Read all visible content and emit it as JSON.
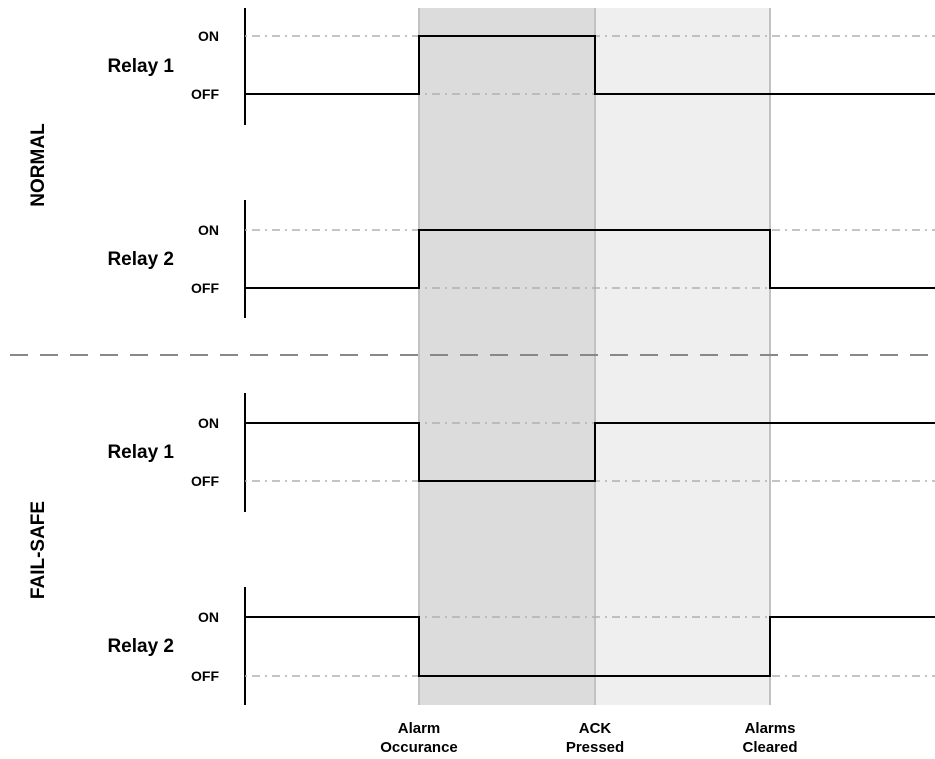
{
  "modes": [
    {
      "label": "NORMAL",
      "relays": [
        {
          "label": "Relay 1",
          "on_label": "ON",
          "off_label": "OFF",
          "states": [
            "OFF",
            "ON",
            "OFF",
            "OFF"
          ]
        },
        {
          "label": "Relay 2",
          "on_label": "ON",
          "off_label": "OFF",
          "states": [
            "OFF",
            "ON",
            "ON",
            "OFF"
          ]
        }
      ]
    },
    {
      "label": "FAIL-SAFE",
      "relays": [
        {
          "label": "Relay 1",
          "on_label": "ON",
          "off_label": "OFF",
          "states": [
            "ON",
            "OFF",
            "ON",
            "ON"
          ]
        },
        {
          "label": "Relay 2",
          "on_label": "ON",
          "off_label": "OFF",
          "states": [
            "ON",
            "OFF",
            "OFF",
            "ON"
          ]
        }
      ]
    }
  ],
  "events": [
    {
      "line1": "Alarm",
      "line2": "Occurance"
    },
    {
      "line1": "ACK",
      "line2": "Pressed"
    },
    {
      "line1": "Alarms",
      "line2": "Cleared"
    }
  ],
  "colors": {
    "alarm_active_shade": "#dcdcdc",
    "acknowledged_shade": "#efefef",
    "signal": "#000000",
    "guide": "#b0b0b0",
    "divider": "#888888"
  }
}
